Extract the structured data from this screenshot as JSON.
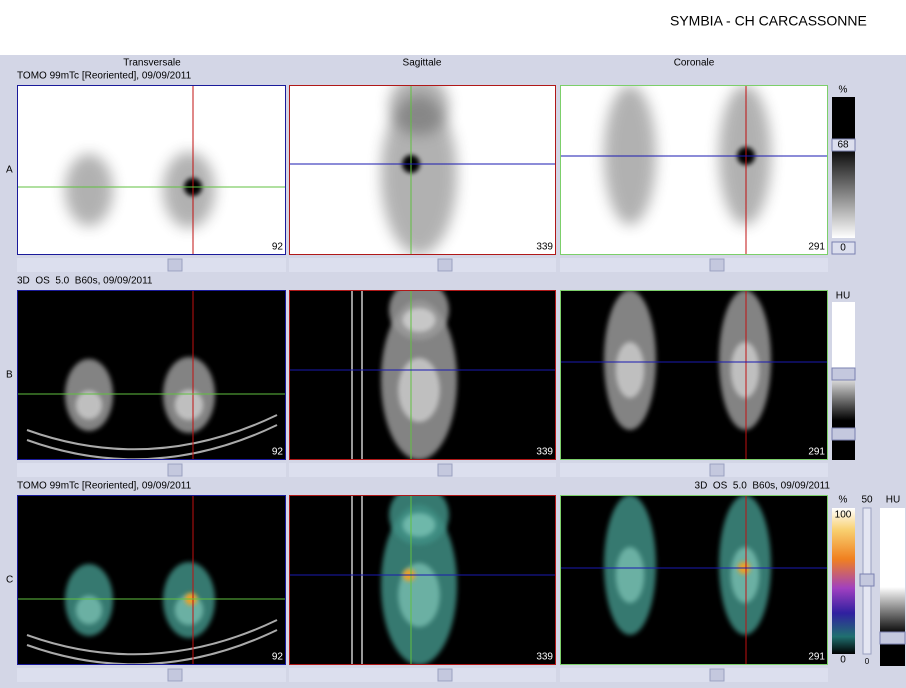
{
  "header": {
    "title": "SYMBIA - CH CARCASSONNE"
  },
  "columns": [
    "Transversale",
    "Sagittale",
    "Coronale"
  ],
  "rows": [
    {
      "label": "A",
      "series_left": "TOMO 99mTc [Reoriented], 09/09/2011",
      "slices": [
        92,
        339,
        291
      ],
      "scale": {
        "unit": "%",
        "max": 68,
        "min": 0
      }
    },
    {
      "label": "B",
      "series_left": "3D  OS  5.0  B60s, 09/09/2011",
      "slices": [
        92,
        339,
        291
      ],
      "scale": {
        "unit": "HU"
      }
    },
    {
      "label": "C",
      "series_left": "TOMO 99mTc [Reoriented], 09/09/2011",
      "series_right": "3D  OS  5.0  B60s, 09/09/2011",
      "slices": [
        92,
        339,
        291
      ],
      "scale": {
        "unit": "%",
        "max": 100,
        "min": 0
      },
      "scale2": {
        "level": 50,
        "unit": "HU",
        "min": 0
      }
    }
  ]
}
